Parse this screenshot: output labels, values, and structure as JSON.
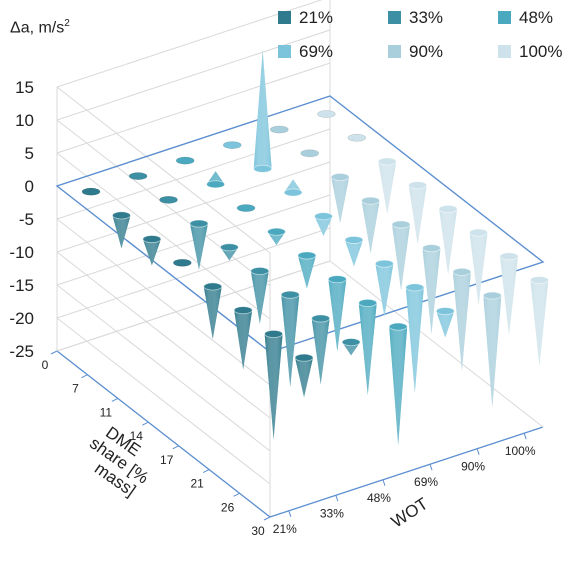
{
  "chart_data": {
    "type": "3d-cone",
    "ylabel_main": "Δa, m/s",
    "ylabel_sup": "2",
    "y_ticks": [
      "15",
      "10",
      "5",
      "0",
      "-5",
      "-10",
      "-15",
      "-20",
      "-25"
    ],
    "ylim": [
      -25,
      15
    ],
    "depth_axis": {
      "label_lines": [
        "DME",
        "share [%",
        "mass]"
      ],
      "ticks": [
        "0",
        "7",
        "11",
        "14",
        "17",
        "21",
        "26",
        "30"
      ]
    },
    "x_axis": {
      "label": "WOT",
      "ticks": [
        "21%",
        "33%",
        "48%",
        "69%",
        "90%",
        "100%"
      ]
    },
    "legend": [
      "21%",
      "33%",
      "48%",
      "69%",
      "90%",
      "100%"
    ],
    "colors": [
      "#2f7a8c",
      "#3d8fa3",
      "#4aa9bf",
      "#7cc4dc",
      "#a9cfdc",
      "#cde2ea"
    ],
    "series": [
      {
        "name": "21%",
        "values": [
          -1,
          -5,
          -4,
          -1,
          -8,
          -9,
          -16,
          -6
        ]
      },
      {
        "name": "33%",
        "values": [
          -1,
          -1,
          -7,
          -2,
          -8,
          -14,
          -10,
          -2
        ]
      },
      {
        "name": "48%",
        "values": [
          -1,
          2,
          -1,
          -2,
          -5,
          -11,
          -14,
          -18
        ]
      },
      {
        "name": "69%",
        "values": [
          -1,
          18,
          2,
          -3,
          -4,
          -8,
          -16,
          -4
        ]
      },
      {
        "name": "90%",
        "values": [
          -1,
          -1,
          -7,
          -8,
          -10,
          -13,
          -15,
          -17
        ]
      },
      {
        "name": "100%",
        "values": [
          -1,
          -1,
          -8,
          -9,
          -10,
          -11,
          -12,
          -13
        ]
      }
    ]
  }
}
